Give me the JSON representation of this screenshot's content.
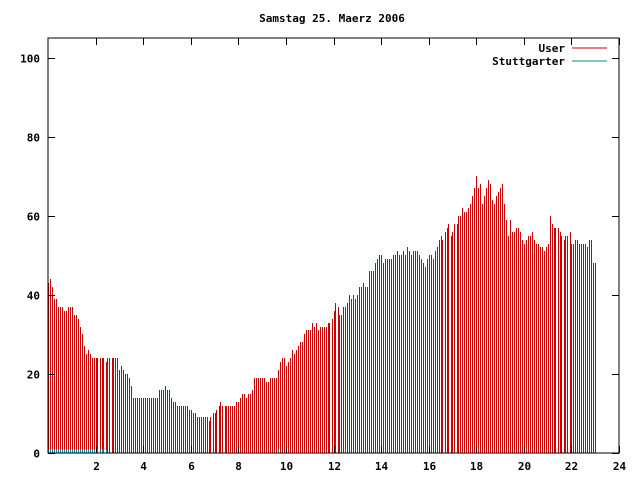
{
  "chart_data": {
    "type": "bar",
    "title": "Samstag 25. Maerz 2006",
    "xlabel": "",
    "ylabel": "",
    "xlim": [
      0,
      24
    ],
    "ylim": [
      0,
      105
    ],
    "x_ticks": [
      2,
      4,
      6,
      8,
      10,
      12,
      14,
      16,
      18,
      20,
      22,
      24
    ],
    "y_ticks": [
      0,
      20,
      40,
      60,
      80,
      100
    ],
    "grid": false,
    "legend_position": "top-right",
    "series": [
      {
        "name": "User",
        "color": "#cc0000",
        "style": "impulses",
        "points": [
          [
            0.0,
            43
          ],
          [
            0.08,
            44
          ],
          [
            0.17,
            42
          ],
          [
            0.25,
            39
          ],
          [
            0.33,
            39
          ],
          [
            0.42,
            37
          ],
          [
            0.5,
            37
          ],
          [
            0.58,
            37
          ],
          [
            0.67,
            36
          ],
          [
            0.75,
            36
          ],
          [
            0.83,
            37
          ],
          [
            0.92,
            37
          ],
          [
            1.0,
            37
          ],
          [
            1.08,
            35
          ],
          [
            1.17,
            35
          ],
          [
            1.25,
            34
          ],
          [
            1.33,
            32
          ],
          [
            1.42,
            30
          ],
          [
            1.5,
            27
          ],
          [
            1.58,
            25
          ],
          [
            1.67,
            26
          ],
          [
            1.75,
            25
          ],
          [
            1.83,
            24
          ],
          [
            1.92,
            24
          ],
          [
            2.0,
            24
          ],
          [
            2.08,
            24
          ],
          [
            2.17,
            24
          ],
          [
            2.25,
            24
          ],
          [
            2.33,
            24
          ],
          [
            2.42,
            23
          ],
          [
            2.5,
            24
          ],
          [
            2.58,
            24
          ],
          [
            2.67,
            24
          ],
          [
            2.75,
            24
          ],
          [
            2.83,
            24
          ],
          [
            2.92,
            24
          ],
          [
            3.0,
            21
          ],
          [
            3.08,
            22
          ],
          [
            3.17,
            21
          ],
          [
            3.25,
            20
          ],
          [
            3.33,
            20
          ],
          [
            3.42,
            19
          ],
          [
            3.5,
            17
          ],
          [
            3.58,
            14
          ],
          [
            3.67,
            14
          ],
          [
            3.75,
            14
          ],
          [
            3.83,
            14
          ],
          [
            3.92,
            14
          ],
          [
            4.0,
            14
          ],
          [
            4.08,
            14
          ],
          [
            4.17,
            14
          ],
          [
            4.25,
            14
          ],
          [
            4.33,
            14
          ],
          [
            4.42,
            14
          ],
          [
            4.5,
            14
          ],
          [
            4.58,
            14
          ],
          [
            4.67,
            16
          ],
          [
            4.75,
            16
          ],
          [
            4.83,
            16
          ],
          [
            4.92,
            17
          ],
          [
            5.0,
            16
          ],
          [
            5.08,
            16
          ],
          [
            5.17,
            14
          ],
          [
            5.25,
            13
          ],
          [
            5.33,
            13
          ],
          [
            5.42,
            12
          ],
          [
            5.5,
            12
          ],
          [
            5.58,
            12
          ],
          [
            5.67,
            12
          ],
          [
            5.75,
            12
          ],
          [
            5.83,
            12
          ],
          [
            5.92,
            11
          ],
          [
            6.0,
            11
          ],
          [
            6.08,
            10
          ],
          [
            6.17,
            10
          ],
          [
            6.25,
            9
          ],
          [
            6.33,
            9
          ],
          [
            6.42,
            9
          ],
          [
            6.5,
            9
          ],
          [
            6.58,
            9
          ],
          [
            6.67,
            9
          ],
          [
            6.75,
            8
          ],
          [
            6.83,
            9
          ],
          [
            6.92,
            10
          ],
          [
            7.0,
            10
          ],
          [
            7.08,
            11
          ],
          [
            7.17,
            12
          ],
          [
            7.25,
            13
          ],
          [
            7.33,
            12
          ],
          [
            7.42,
            12
          ],
          [
            7.5,
            12
          ],
          [
            7.58,
            12
          ],
          [
            7.67,
            12
          ],
          [
            7.75,
            12
          ],
          [
            7.83,
            12
          ],
          [
            7.92,
            13
          ],
          [
            8.0,
            13
          ],
          [
            8.08,
            14
          ],
          [
            8.17,
            15
          ],
          [
            8.25,
            15
          ],
          [
            8.33,
            14
          ],
          [
            8.42,
            15
          ],
          [
            8.5,
            15
          ],
          [
            8.58,
            16
          ],
          [
            8.67,
            19
          ],
          [
            8.75,
            19
          ],
          [
            8.83,
            19
          ],
          [
            8.92,
            19
          ],
          [
            9.0,
            19
          ],
          [
            9.08,
            19
          ],
          [
            9.17,
            18
          ],
          [
            9.25,
            18
          ],
          [
            9.33,
            19
          ],
          [
            9.42,
            19
          ],
          [
            9.5,
            19
          ],
          [
            9.58,
            19
          ],
          [
            9.67,
            21
          ],
          [
            9.75,
            23
          ],
          [
            9.83,
            24
          ],
          [
            9.92,
            24
          ],
          [
            10.0,
            22
          ],
          [
            10.08,
            23
          ],
          [
            10.17,
            24
          ],
          [
            10.25,
            26
          ],
          [
            10.33,
            25
          ],
          [
            10.42,
            26
          ],
          [
            10.5,
            27
          ],
          [
            10.58,
            28
          ],
          [
            10.67,
            28
          ],
          [
            10.75,
            30
          ],
          [
            10.83,
            31
          ],
          [
            10.92,
            31
          ],
          [
            11.0,
            31
          ],
          [
            11.08,
            33
          ],
          [
            11.17,
            32
          ],
          [
            11.25,
            33
          ],
          [
            11.33,
            31
          ],
          [
            11.42,
            32
          ],
          [
            11.5,
            32
          ],
          [
            11.58,
            32
          ],
          [
            11.67,
            32
          ],
          [
            11.75,
            33
          ],
          [
            11.83,
            33
          ],
          [
            11.92,
            34
          ],
          [
            12.0,
            36
          ],
          [
            12.08,
            38
          ],
          [
            12.17,
            37
          ],
          [
            12.25,
            35
          ],
          [
            12.33,
            35
          ],
          [
            12.42,
            37
          ],
          [
            12.5,
            37
          ],
          [
            12.58,
            38
          ],
          [
            12.67,
            40
          ],
          [
            12.75,
            39
          ],
          [
            12.83,
            40
          ],
          [
            12.92,
            39
          ],
          [
            13.0,
            40
          ],
          [
            13.08,
            42
          ],
          [
            13.17,
            42
          ],
          [
            13.25,
            43
          ],
          [
            13.33,
            42
          ],
          [
            13.42,
            42
          ],
          [
            13.5,
            46
          ],
          [
            13.58,
            46
          ],
          [
            13.67,
            46
          ],
          [
            13.75,
            48
          ],
          [
            13.83,
            49
          ],
          [
            13.92,
            50
          ],
          [
            14.0,
            50
          ],
          [
            14.08,
            48
          ],
          [
            14.17,
            49
          ],
          [
            14.25,
            49
          ],
          [
            14.33,
            49
          ],
          [
            14.42,
            49
          ],
          [
            14.5,
            50
          ],
          [
            14.58,
            50
          ],
          [
            14.67,
            51
          ],
          [
            14.75,
            50
          ],
          [
            14.83,
            50
          ],
          [
            14.92,
            51
          ],
          [
            15.0,
            50
          ],
          [
            15.08,
            52
          ],
          [
            15.17,
            51
          ],
          [
            15.25,
            50
          ],
          [
            15.33,
            51
          ],
          [
            15.42,
            51
          ],
          [
            15.5,
            51
          ],
          [
            15.58,
            50
          ],
          [
            15.67,
            49
          ],
          [
            15.75,
            48
          ],
          [
            15.83,
            47
          ],
          [
            15.92,
            49
          ],
          [
            16.0,
            50
          ],
          [
            16.08,
            50
          ],
          [
            16.17,
            49
          ],
          [
            16.25,
            51
          ],
          [
            16.33,
            52
          ],
          [
            16.42,
            54
          ],
          [
            16.5,
            55
          ],
          [
            16.58,
            54
          ],
          [
            16.67,
            56
          ],
          [
            16.75,
            57
          ],
          [
            16.83,
            58
          ],
          [
            16.92,
            55
          ],
          [
            17.0,
            56
          ],
          [
            17.08,
            58
          ],
          [
            17.17,
            58
          ],
          [
            17.25,
            60
          ],
          [
            17.33,
            60
          ],
          [
            17.42,
            62
          ],
          [
            17.5,
            61
          ],
          [
            17.58,
            61
          ],
          [
            17.67,
            62
          ],
          [
            17.75,
            63
          ],
          [
            17.83,
            65
          ],
          [
            17.92,
            67
          ],
          [
            18.0,
            70
          ],
          [
            18.08,
            67
          ],
          [
            18.17,
            68
          ],
          [
            18.25,
            63
          ],
          [
            18.33,
            65
          ],
          [
            18.42,
            67
          ],
          [
            18.5,
            69
          ],
          [
            18.58,
            68
          ],
          [
            18.67,
            64
          ],
          [
            18.75,
            63
          ],
          [
            18.83,
            65
          ],
          [
            18.92,
            66
          ],
          [
            19.0,
            67
          ],
          [
            19.08,
            68
          ],
          [
            19.17,
            63
          ],
          [
            19.25,
            59
          ],
          [
            19.33,
            55
          ],
          [
            19.42,
            59
          ],
          [
            19.5,
            56
          ],
          [
            19.58,
            56
          ],
          [
            19.67,
            57
          ],
          [
            19.75,
            57
          ],
          [
            19.83,
            56
          ],
          [
            19.92,
            54
          ],
          [
            20.0,
            53
          ],
          [
            20.08,
            54
          ],
          [
            20.17,
            55
          ],
          [
            20.25,
            55
          ],
          [
            20.33,
            56
          ],
          [
            20.42,
            54
          ],
          [
            20.5,
            53
          ],
          [
            20.58,
            53
          ],
          [
            20.67,
            52
          ],
          [
            20.75,
            52
          ],
          [
            20.83,
            51
          ],
          [
            20.92,
            52
          ],
          [
            21.0,
            53
          ],
          [
            21.08,
            60
          ],
          [
            21.17,
            58
          ],
          [
            21.25,
            57
          ],
          [
            21.33,
            57
          ],
          [
            21.42,
            57
          ],
          [
            21.5,
            56
          ],
          [
            21.58,
            55
          ],
          [
            21.67,
            54
          ],
          [
            21.75,
            55
          ],
          [
            21.83,
            55
          ],
          [
            21.92,
            56
          ],
          [
            22.0,
            53
          ],
          [
            22.08,
            53
          ],
          [
            22.17,
            54
          ],
          [
            22.25,
            54
          ],
          [
            22.33,
            53
          ],
          [
            22.42,
            53
          ],
          [
            22.5,
            53
          ],
          [
            22.58,
            53
          ],
          [
            22.67,
            52
          ],
          [
            22.75,
            54
          ],
          [
            22.83,
            54
          ],
          [
            22.92,
            48
          ],
          [
            23.0,
            48
          ]
        ]
      },
      {
        "name": "Stuttgarter",
        "color": "#008b8b",
        "style": "impulses",
        "points": [
          [
            0.0,
            1
          ],
          [
            0.08,
            1
          ],
          [
            0.17,
            1
          ],
          [
            0.25,
            1
          ],
          [
            0.33,
            1
          ],
          [
            0.42,
            1
          ],
          [
            0.5,
            1
          ],
          [
            0.58,
            1
          ],
          [
            0.67,
            1
          ],
          [
            0.75,
            1
          ],
          [
            0.83,
            1
          ],
          [
            0.92,
            1
          ],
          [
            1.0,
            1
          ],
          [
            1.08,
            1
          ],
          [
            1.17,
            1
          ],
          [
            1.25,
            1
          ],
          [
            1.33,
            1
          ],
          [
            1.42,
            1
          ],
          [
            1.5,
            1
          ],
          [
            1.58,
            1
          ],
          [
            1.67,
            1
          ],
          [
            1.75,
            1
          ],
          [
            1.83,
            1
          ],
          [
            1.92,
            1
          ],
          [
            2.0,
            1
          ],
          [
            2.08,
            1
          ],
          [
            2.17,
            1
          ],
          [
            2.25,
            1
          ],
          [
            2.33,
            1
          ],
          [
            2.42,
            1
          ],
          [
            9.67,
            1
          ],
          [
            12.5,
            1
          ]
        ]
      }
    ]
  }
}
